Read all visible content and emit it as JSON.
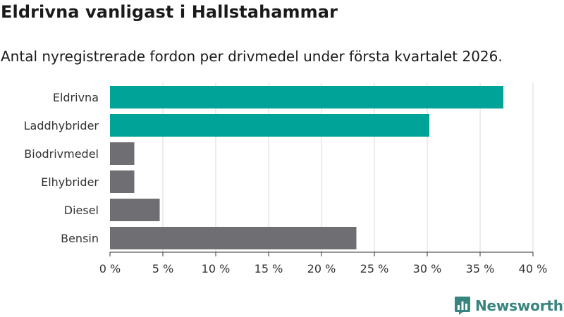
{
  "title": "Eldrivna vanligast i Hallstahammar",
  "subtitle": "Antal nyregistrerade fordon per drivmedel under första kvartalet 2026.",
  "brand": {
    "name": "Newsworthy",
    "color": "#38847f"
  },
  "colors": {
    "highlight": "#00a398",
    "other": "#6e6e73",
    "grid": "#d9d9d9",
    "axis": "#333333"
  },
  "chart_data": {
    "type": "bar",
    "orientation": "horizontal",
    "title": "Eldrivna vanligast i Hallstahammar",
    "subtitle": "Antal nyregistrerade fordon per drivmedel under första kvartalet 2026.",
    "categories": [
      "Eldrivna",
      "Laddhybrider",
      "Biodrivmedel",
      "Elhybrider",
      "Diesel",
      "Bensin"
    ],
    "values": [
      37.2,
      30.2,
      2.3,
      2.3,
      4.7,
      23.3
    ],
    "highlighted": [
      true,
      true,
      false,
      false,
      false,
      false
    ],
    "xlim": [
      0,
      40
    ],
    "xticks": [
      0,
      5,
      10,
      15,
      20,
      25,
      30,
      35,
      40
    ],
    "xtick_labels": [
      "0 %",
      "5 %",
      "10 %",
      "15 %",
      "20 %",
      "25 %",
      "30 %",
      "35 %",
      "40 %"
    ],
    "xlabel": "",
    "ylabel": "",
    "grid": true,
    "legend": "none"
  }
}
